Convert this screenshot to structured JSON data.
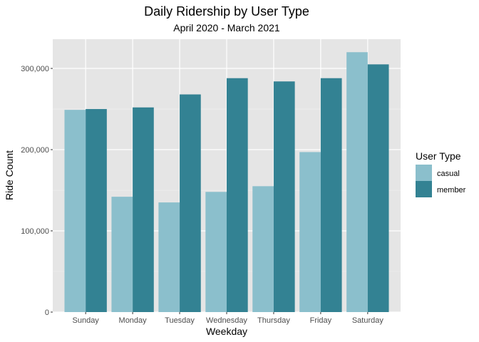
{
  "chart_data": {
    "type": "bar",
    "title": "Daily Ridership by User Type",
    "subtitle": "April 2020 - March 2021",
    "xlabel": "Weekday",
    "ylabel": "Ride Count",
    "categories": [
      "Sunday",
      "Monday",
      "Tuesday",
      "Wednesday",
      "Thursday",
      "Friday",
      "Saturday"
    ],
    "series": [
      {
        "name": "casual",
        "color": "#8bbfcc",
        "values": [
          249000,
          142000,
          135000,
          148000,
          155000,
          197000,
          320000
        ]
      },
      {
        "name": "member",
        "color": "#338293",
        "values": [
          250000,
          252000,
          268000,
          288000,
          284000,
          288000,
          305000
        ]
      }
    ],
    "ylim": [
      0,
      336000
    ],
    "y_ticks": [
      0,
      100000,
      200000,
      300000
    ],
    "y_tick_labels": [
      "0",
      "100,000",
      "200,000",
      "300,000"
    ],
    "grid": true,
    "panel_background": "#e5e5e5",
    "legend": {
      "title": "User Type",
      "position": "right"
    }
  }
}
